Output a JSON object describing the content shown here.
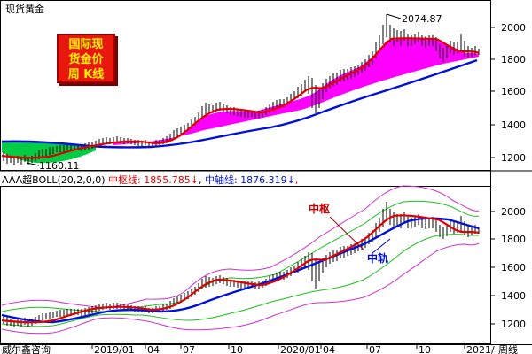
{
  "title": "现货黄金",
  "badge": {
    "line1": "国际现",
    "line2": "货金价",
    "line3": "周 K线"
  },
  "top_panel": {
    "peak_label": "2074.87",
    "trough_label": "1160.11",
    "y_ticks": [
      "2000",
      "1800",
      "1600",
      "1400",
      "1200"
    ]
  },
  "indicator": {
    "name": "AAA超BOLL(20,2,0,0)",
    "mid_label": "中枢线: 1855.785",
    "mid_arrow": "↓",
    "axis_label": "中轴线: 1876.319",
    "axis_arrow": "↓",
    "trail": ","
  },
  "bottom_panel": {
    "annot_zhongshu": "中枢",
    "annot_zhonggui": "中轨",
    "y_ticks": [
      "2000",
      "1800",
      "1600",
      "1400",
      "1200"
    ]
  },
  "time_axis": {
    "left_label": "威尔鑫咨询",
    "labels": [
      "2019/01",
      "04",
      "07",
      "10",
      "2020/01",
      "04",
      "07",
      "10",
      "2021/"
    ],
    "period": "周线"
  },
  "colors": {
    "candle": "#000000",
    "mid_line": "#e00000",
    "axis_line": "#0010d8",
    "fill_up": "#ff00ff",
    "fill_low": "#00cc44",
    "band_outer": "#d030d0",
    "band_inner": "#20c020",
    "badge_bg": "#e8180f",
    "badge_text": "#fff200"
  }
}
